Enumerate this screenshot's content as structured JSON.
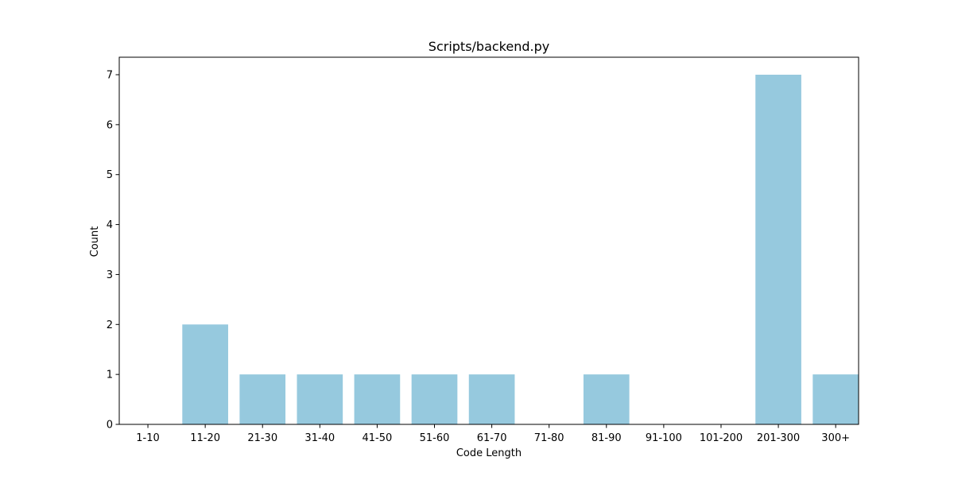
{
  "chart_data": {
    "type": "bar",
    "title": "Scripts/backend.py",
    "xlabel": "Code Length",
    "ylabel": "Count",
    "categories": [
      "1-10",
      "11-20",
      "21-30",
      "31-40",
      "41-50",
      "51-60",
      "61-70",
      "71-80",
      "81-90",
      "91-100",
      "101-200",
      "201-300",
      "300+"
    ],
    "values": [
      0,
      2,
      1,
      1,
      1,
      1,
      1,
      0,
      1,
      0,
      0,
      7,
      1
    ],
    "ylim": [
      0,
      7.35
    ],
    "yticks": [
      0,
      1,
      2,
      3,
      4,
      5,
      6,
      7
    ],
    "grid": false,
    "legend": "none",
    "bar_color": "#96c9de"
  }
}
